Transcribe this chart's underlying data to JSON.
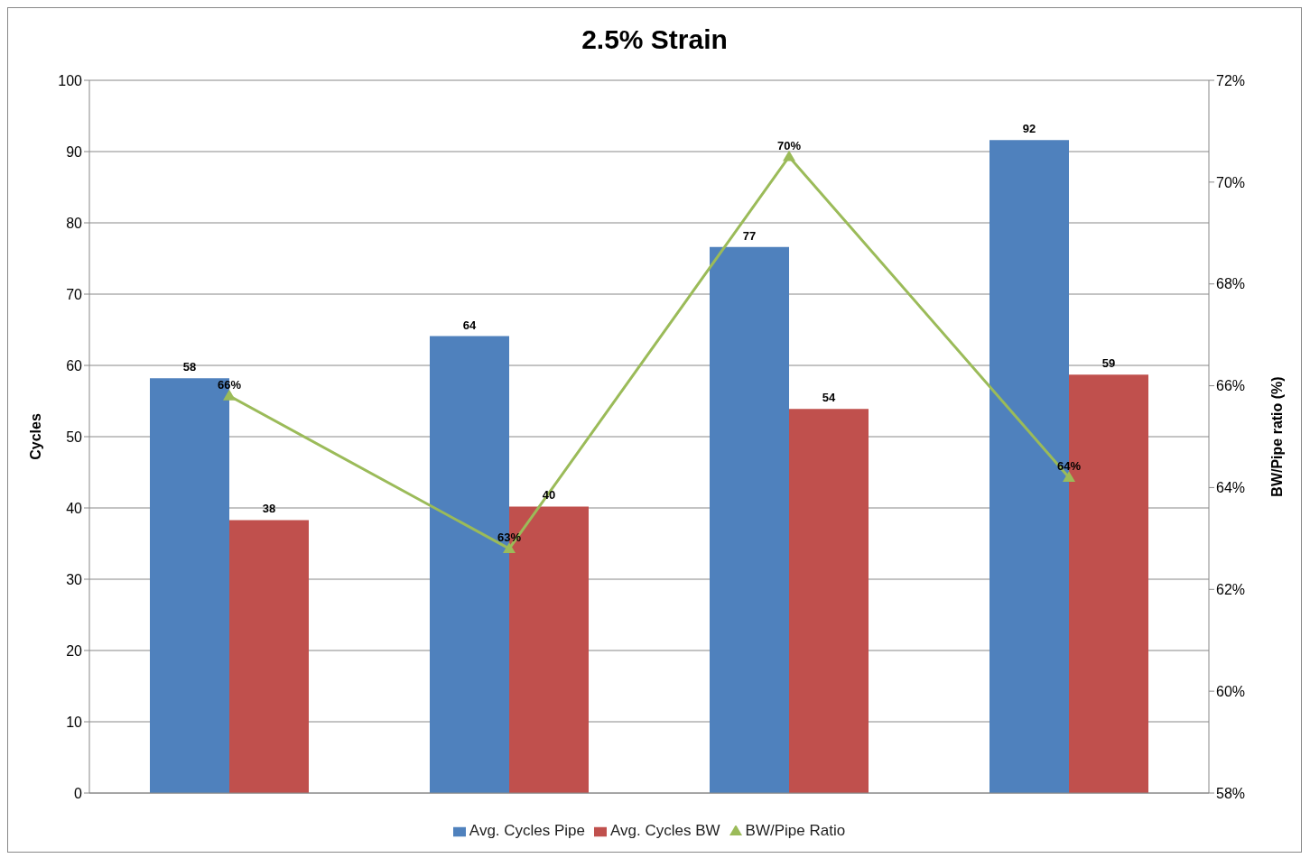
{
  "chart_data": {
    "type": "bar",
    "title": "2.5% Strain",
    "ylabel": "Cycles",
    "y2label": "BW/Pipe ratio (%)",
    "categories": [
      null,
      null,
      null,
      null
    ],
    "series": [
      {
        "name": "Avg. Cycles Pipe",
        "color": "#4f81bd",
        "values": [
          58.2,
          64.1,
          76.6,
          91.6
        ],
        "value_labels": [
          "58",
          "64",
          "77",
          "92"
        ]
      },
      {
        "name": "Avg. Cycles BW",
        "color": "#c0504d",
        "values": [
          38.3,
          40.2,
          53.9,
          58.7
        ],
        "value_labels": [
          "38",
          "40",
          "54",
          "59"
        ]
      },
      {
        "name": "BW/Pipe Ratio",
        "type": "line",
        "axis": "y2",
        "color": "#9bbb59",
        "values": [
          65.8,
          62.8,
          70.5,
          64.2
        ],
        "value_labels": [
          "66%",
          "63%",
          "70%",
          "64%"
        ],
        "marker": "triangle",
        "line_style": "solid"
      }
    ],
    "ylim": [
      0,
      100
    ],
    "yticks": [
      0,
      10,
      20,
      30,
      40,
      50,
      60,
      70,
      80,
      90,
      100
    ],
    "y2lim": [
      58,
      72
    ],
    "y2ticks": [
      {
        "value": 58,
        "label": "58%"
      },
      {
        "value": 60,
        "label": "60%"
      },
      {
        "value": 62,
        "label": "62%"
      },
      {
        "value": 64,
        "label": "64%"
      },
      {
        "value": 66,
        "label": "66%"
      },
      {
        "value": 68,
        "label": "68%"
      },
      {
        "value": 70,
        "label": "70%"
      },
      {
        "value": 72,
        "label": "72%"
      }
    ],
    "grid": "y",
    "legend": "bottom"
  }
}
